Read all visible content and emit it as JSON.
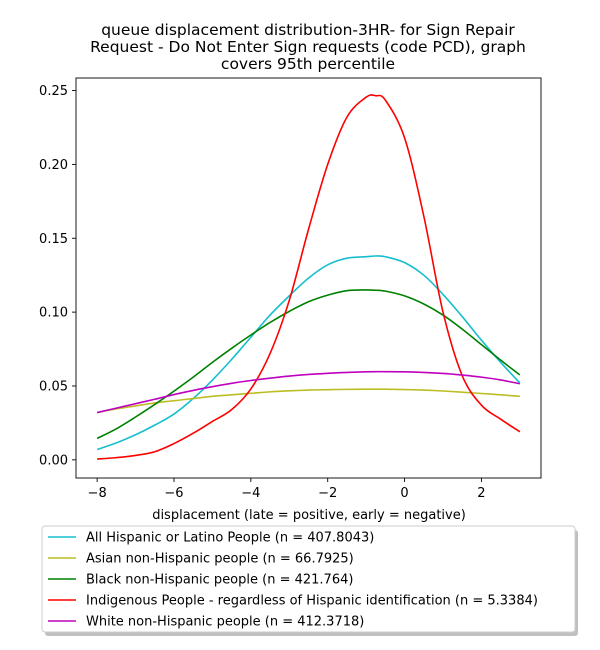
{
  "chart_data": {
    "type": "line",
    "title_lines": [
      "queue displacement distribution-3HR-  for Sign Repair",
      "Request - Do Not Enter Sign  requests (code PCD), graph",
      "covers 95th percentile"
    ],
    "xlabel": "displacement (late = positive, early = negative)",
    "ylabel": "",
    "xlim": [
      -8.55,
      3.55
    ],
    "ylim": [
      -0.0123,
      0.2585
    ],
    "x_ticks": [
      -8,
      -6,
      -4,
      -2,
      0,
      2
    ],
    "x_tick_labels": [
      "−8",
      "−6",
      "−4",
      "−2",
      "0",
      "2"
    ],
    "y_ticks": [
      0.0,
      0.05,
      0.1,
      0.15,
      0.2,
      0.25
    ],
    "y_tick_labels": [
      "0.00",
      "0.05",
      "0.10",
      "0.15",
      "0.20",
      "0.25"
    ],
    "grid": false,
    "legend_position": "below-plot",
    "x": [
      -8,
      -7.5,
      -7,
      -6.5,
      -6,
      -5.5,
      -5,
      -4.5,
      -4,
      -3.5,
      -3,
      -2.5,
      -2,
      -1.5,
      -1,
      -0.75,
      -0.5,
      0,
      0.5,
      1,
      1.5,
      2,
      2.5,
      3
    ],
    "series": [
      {
        "name": "All Hispanic or Latino People (n = 407.8043)",
        "color": "#17becf",
        "values": [
          0.007,
          0.0115,
          0.017,
          0.0235,
          0.031,
          0.0415,
          0.054,
          0.068,
          0.083,
          0.098,
          0.111,
          0.123,
          0.132,
          0.1365,
          0.1375,
          0.138,
          0.1375,
          0.1335,
          0.125,
          0.112,
          0.097,
          0.081,
          0.066,
          0.052
        ]
      },
      {
        "name": "Asian non-Hispanic people (n = 66.7925)",
        "color": "#bcbd22",
        "values": [
          0.032,
          0.0345,
          0.0365,
          0.0385,
          0.04,
          0.0415,
          0.043,
          0.044,
          0.045,
          0.046,
          0.0467,
          0.0472,
          0.0475,
          0.0477,
          0.0478,
          0.0478,
          0.0478,
          0.0476,
          0.0472,
          0.0466,
          0.0458,
          0.0449,
          0.044,
          0.043
        ]
      },
      {
        "name": "Black non-Hispanic people (n = 421.764)",
        "color": "#008000",
        "values": [
          0.0145,
          0.021,
          0.029,
          0.0375,
          0.0465,
          0.056,
          0.066,
          0.0755,
          0.0845,
          0.093,
          0.1005,
          0.107,
          0.1115,
          0.1145,
          0.115,
          0.1148,
          0.1142,
          0.111,
          0.1055,
          0.098,
          0.0885,
          0.078,
          0.0675,
          0.0575
        ]
      },
      {
        "name": "Indigenous People - regardless of Hispanic identification (n = 5.3384)",
        "color": "#ff0000",
        "values": [
          0.0005,
          0.0015,
          0.003,
          0.0055,
          0.011,
          0.018,
          0.026,
          0.034,
          0.048,
          0.072,
          0.108,
          0.156,
          0.2,
          0.232,
          0.2455,
          0.2465,
          0.2435,
          0.218,
          0.165,
          0.1,
          0.057,
          0.037,
          0.0275,
          0.019
        ]
      },
      {
        "name": "White non-Hispanic people (n = 412.3718)",
        "color": "#bf00bf",
        "values": [
          0.032,
          0.035,
          0.038,
          0.041,
          0.0442,
          0.047,
          0.0495,
          0.0518,
          0.0537,
          0.0553,
          0.0567,
          0.0578,
          0.0586,
          0.0592,
          0.0596,
          0.0597,
          0.0597,
          0.0596,
          0.0592,
          0.0585,
          0.0574,
          0.056,
          0.0541,
          0.0515
        ]
      }
    ]
  }
}
